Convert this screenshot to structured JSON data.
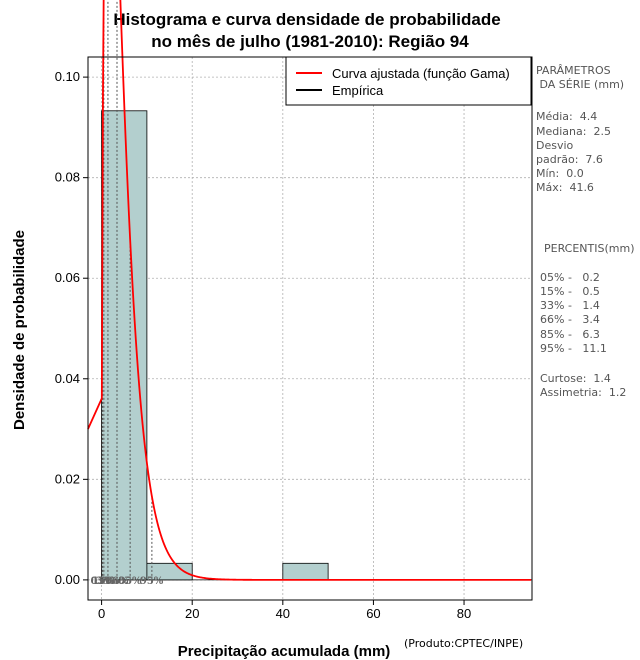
{
  "chart_data": {
    "type": "histogram",
    "title_line1": "Histograma e curva densidade de probabilidade",
    "title_line2": "no mês de julho (1981-2010): Região 94",
    "xlabel": "Precipitação acumulada (mm)",
    "ylabel": "Densidade de probabilidade",
    "xlim": [
      -3,
      95
    ],
    "ylim": [
      -0.004,
      0.104
    ],
    "x_ticks": [
      0,
      20,
      40,
      60,
      80
    ],
    "y_ticks": [
      0.0,
      0.02,
      0.04,
      0.06,
      0.08,
      0.1
    ],
    "y_tick_labels": [
      "0.00",
      "0.02",
      "0.04",
      "0.06",
      "0.08",
      "0.10"
    ],
    "grid": true,
    "bins": [
      {
        "start": 0,
        "end": 10,
        "density": 0.0933
      },
      {
        "start": 10,
        "end": 20,
        "density": 0.0033
      },
      {
        "start": 20,
        "end": 30,
        "density": 0
      },
      {
        "start": 30,
        "end": 40,
        "density": 0
      },
      {
        "start": 40,
        "end": 50,
        "density": 0.0033
      }
    ],
    "bar_color": "#b3cfce",
    "curve_color": "#ff0000",
    "gamma_fit": {
      "shape": 1.6,
      "scale": 2.75
    },
    "percentile_lines": [
      0.2,
      0.5,
      1.4,
      3.4,
      6.3,
      11.1
    ],
    "percentile_marker_labels": [
      "05%",
      "15%",
      "33%",
      "66%",
      "85%",
      "95%"
    ],
    "legend": [
      {
        "label": "Curva ajustada (função Gama)",
        "color": "#ff0000"
      },
      {
        "label": "Empírica",
        "color": "#000000"
      }
    ],
    "legend_position": "top-right"
  },
  "side_panel": {
    "params_title_1": "PARÂMETROS",
    "params_title_2": " DA SÉRIE (mm)",
    "media": "Média:  4.4",
    "mediana": "Mediana:  2.5",
    "desvio_1": "Desvio",
    "desvio_2": "padrão:  7.6",
    "min": "Mín:  0.0",
    "max": "Máx:  41.6",
    "percentis_title": "PERCENTIS(mm)",
    "percentis": [
      "05% -   0.2",
      "15% -   0.5",
      "33% -   1.4",
      "66% -   3.4",
      "85% -   6.3",
      "95% -   11.1"
    ],
    "curtose": "Curtose:  1.4",
    "assimetria": "Assimetria:  1.2"
  },
  "credit": "(Produto:CPTEC/INPE)"
}
